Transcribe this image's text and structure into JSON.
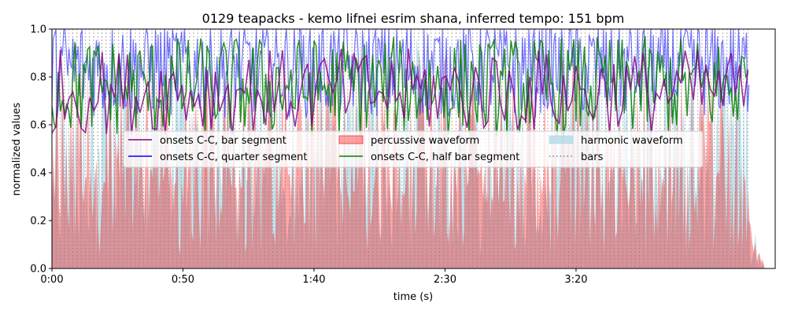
{
  "chart_data": {
    "type": "line",
    "title": "0129 teapacks - kemo lifnei esrim shana, inferred tempo: 151 bpm",
    "xlabel": "time (s)",
    "ylabel": "normalized values",
    "xlim": [
      0,
      276
    ],
    "ylim": [
      0,
      1.0
    ],
    "x_ticks": [
      0,
      50,
      100,
      150,
      200
    ],
    "x_tick_labels": [
      "0:00",
      "0:50",
      "1:40",
      "2:30",
      "3:20"
    ],
    "y_ticks": [
      0.0,
      0.2,
      0.4,
      0.6,
      0.8,
      1.0
    ],
    "y_tick_labels": [
      "0.0",
      "0.2",
      "0.4",
      "0.6",
      "0.8",
      "1.0"
    ],
    "tempo_bpm": 151,
    "bar_interval_s": 1.59,
    "signal_end_s": 266,
    "legend_location": "center",
    "legend_columns": 3,
    "colors": {
      "bar_segment": "#800080",
      "half_bar_segment": "#008000",
      "quarter_segment": "#0000ff",
      "harmonic": "#add8e6",
      "percussive": "#ff0000",
      "bars": "#808080"
    },
    "series": [
      {
        "name": "onsets C-C, bar segment",
        "key": "bar_segment",
        "style": "line",
        "range": [
          0.55,
          0.95
        ],
        "mean": 0.74
      },
      {
        "name": "onsets C-C, quarter segment",
        "key": "quarter_segment",
        "style": "line",
        "range": [
          0.38,
          1.0
        ],
        "mean": 0.84
      },
      {
        "name": "percussive waveform",
        "key": "percussive",
        "style": "fill",
        "range": [
          0.0,
          0.9
        ],
        "mean": 0.55
      },
      {
        "name": "onsets C-C, half bar segment",
        "key": "half_bar_segment",
        "style": "line",
        "range": [
          0.45,
          0.98
        ],
        "mean": 0.76
      },
      {
        "name": "harmonic waveform",
        "key": "harmonic",
        "style": "fill",
        "range": [
          0.0,
          0.98
        ],
        "mean": 0.6
      },
      {
        "name": "bars",
        "key": "bars",
        "style": "dotted-vlines"
      }
    ]
  }
}
